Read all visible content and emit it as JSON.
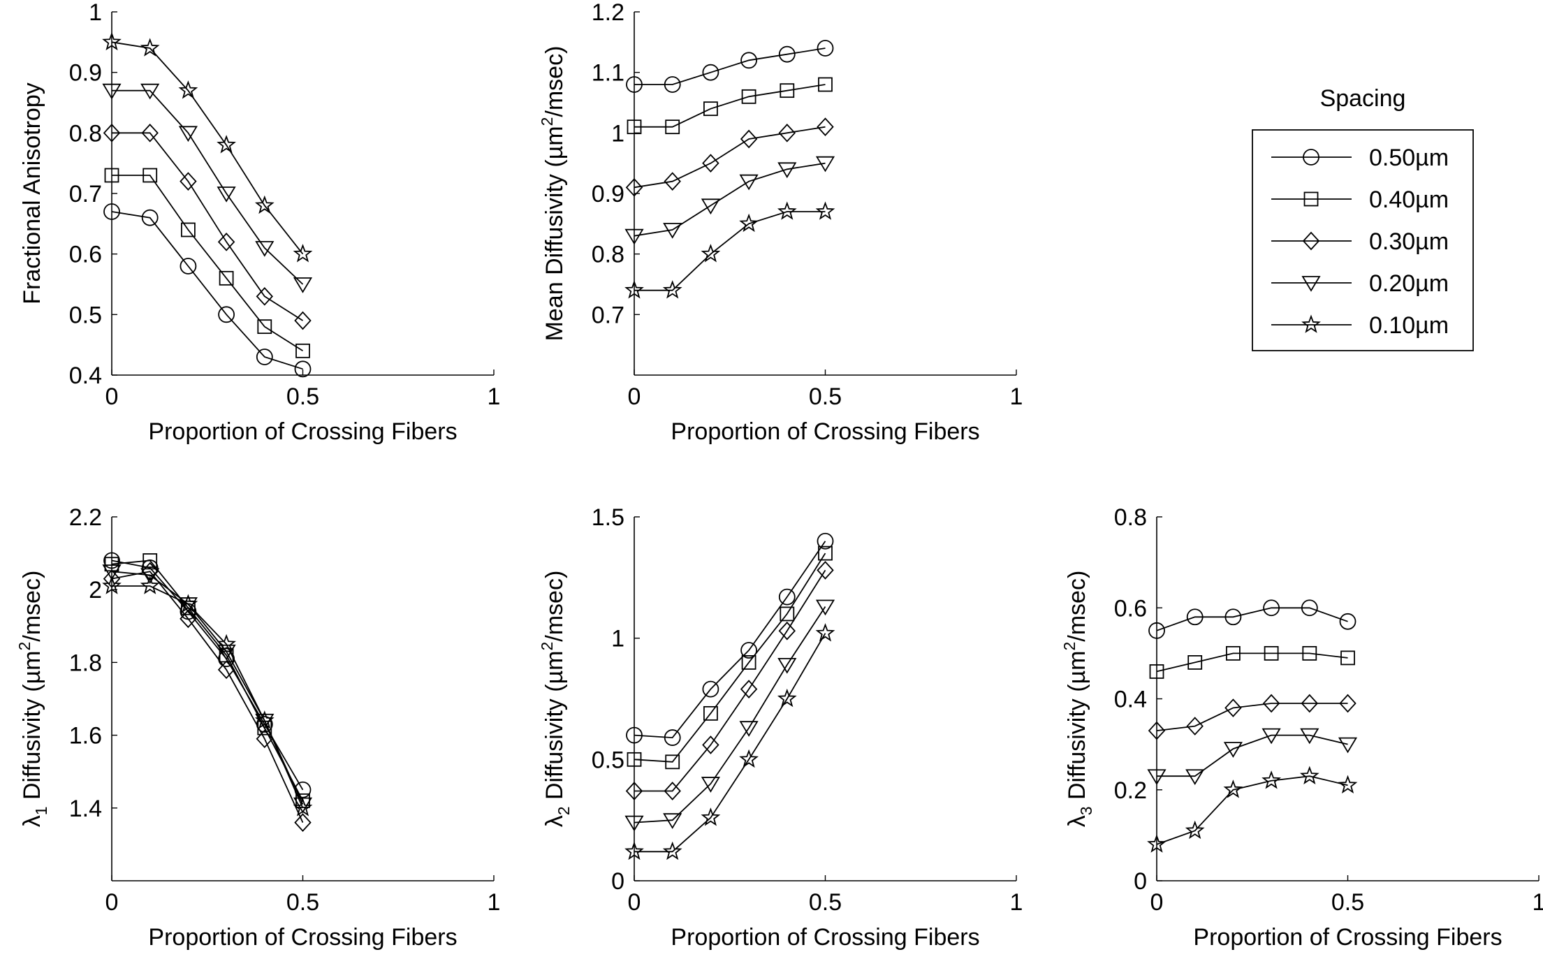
{
  "legend": {
    "title": "Spacing",
    "entries": [
      {
        "label": "0.50µm",
        "marker": "circle"
      },
      {
        "label": "0.40µm",
        "marker": "square"
      },
      {
        "label": "0.30µm",
        "marker": "diamond"
      },
      {
        "label": "0.20µm",
        "marker": "triangle-down"
      },
      {
        "label": "0.10µm",
        "marker": "star"
      }
    ]
  },
  "chart_data": [
    {
      "type": "line",
      "xlabel": "Proportion of Crossing Fibers",
      "ylabel": "Fractional Anisotropy",
      "xlim": [
        0,
        1
      ],
      "ylim": [
        0.4,
        1
      ],
      "xticks": [
        "0",
        "0.5",
        "1"
      ],
      "yticks": [
        "0.4",
        "0.5",
        "0.6",
        "0.7",
        "0.8",
        "0.9",
        "1"
      ],
      "x": [
        0,
        0.1,
        0.2,
        0.3,
        0.4,
        0.5
      ],
      "series": [
        {
          "name": "0.50µm",
          "marker": "circle",
          "values": [
            0.67,
            0.66,
            0.58,
            0.5,
            0.43,
            0.41
          ]
        },
        {
          "name": "0.40µm",
          "marker": "square",
          "values": [
            0.73,
            0.73,
            0.64,
            0.56,
            0.48,
            0.44
          ]
        },
        {
          "name": "0.30µm",
          "marker": "diamond",
          "values": [
            0.8,
            0.8,
            0.72,
            0.62,
            0.53,
            0.49
          ]
        },
        {
          "name": "0.20µm",
          "marker": "triangle-down",
          "values": [
            0.87,
            0.87,
            0.8,
            0.7,
            0.61,
            0.55
          ]
        },
        {
          "name": "0.10µm",
          "marker": "star",
          "values": [
            0.95,
            0.94,
            0.87,
            0.78,
            0.68,
            0.6
          ]
        }
      ]
    },
    {
      "type": "line",
      "xlabel": "Proportion of Crossing Fibers",
      "ylabel": "Mean Diffusivity (µm²/msec)",
      "xlim": [
        0,
        1
      ],
      "ylim": [
        0.6,
        1.2
      ],
      "xticks": [
        "0",
        "0.5",
        "1"
      ],
      "yticks": [
        "0.7",
        "0.8",
        "0.9",
        "1",
        "1.1",
        "1.2"
      ],
      "x": [
        0,
        0.1,
        0.2,
        0.3,
        0.4,
        0.5
      ],
      "series": [
        {
          "name": "0.50µm",
          "marker": "circle",
          "values": [
            1.08,
            1.08,
            1.1,
            1.12,
            1.13,
            1.14
          ]
        },
        {
          "name": "0.40µm",
          "marker": "square",
          "values": [
            1.01,
            1.01,
            1.04,
            1.06,
            1.07,
            1.08
          ]
        },
        {
          "name": "0.30µm",
          "marker": "diamond",
          "values": [
            0.91,
            0.92,
            0.95,
            0.99,
            1.0,
            1.01
          ]
        },
        {
          "name": "0.20µm",
          "marker": "triangle-down",
          "values": [
            0.83,
            0.84,
            0.88,
            0.92,
            0.94,
            0.95
          ]
        },
        {
          "name": "0.10µm",
          "marker": "star",
          "values": [
            0.74,
            0.74,
            0.8,
            0.85,
            0.87,
            0.87
          ]
        }
      ]
    },
    {
      "type": "line",
      "xlabel": "Proportion of Crossing Fibers",
      "ylabel": "λ₁ Diffusivity (µm²/msec)",
      "xlim": [
        0,
        1
      ],
      "ylim": [
        1.2,
        2.2
      ],
      "xticks": [
        "0",
        "0.5",
        "1"
      ],
      "yticks": [
        "1.4",
        "1.6",
        "1.8",
        "2",
        "2.2"
      ],
      "x": [
        0,
        0.1,
        0.2,
        0.3,
        0.4,
        0.5
      ],
      "series": [
        {
          "name": "0.50µm",
          "marker": "circle",
          "values": [
            2.08,
            2.06,
            1.94,
            1.81,
            1.63,
            1.45
          ]
        },
        {
          "name": "0.40µm",
          "marker": "square",
          "values": [
            2.07,
            2.08,
            1.95,
            1.82,
            1.62,
            1.42
          ]
        },
        {
          "name": "0.30µm",
          "marker": "diamond",
          "values": [
            2.03,
            2.05,
            1.92,
            1.78,
            1.59,
            1.36
          ]
        },
        {
          "name": "0.20µm",
          "marker": "triangle-down",
          "values": [
            2.05,
            2.04,
            1.96,
            1.83,
            1.64,
            1.41
          ]
        },
        {
          "name": "0.10µm",
          "marker": "star",
          "values": [
            2.01,
            2.01,
            1.96,
            1.85,
            1.64,
            1.4
          ]
        }
      ]
    },
    {
      "type": "line",
      "xlabel": "Proportion of Crossing Fibers",
      "ylabel": "λ₂ Diffusivity (µm²/msec)",
      "xlim": [
        0,
        1
      ],
      "ylim": [
        0,
        1.5
      ],
      "xticks": [
        "0",
        "0.5",
        "1"
      ],
      "yticks": [
        "0",
        "0.5",
        "1",
        "1.5"
      ],
      "x": [
        0,
        0.1,
        0.2,
        0.3,
        0.4,
        0.5
      ],
      "series": [
        {
          "name": "0.50µm",
          "marker": "circle",
          "values": [
            0.6,
            0.59,
            0.79,
            0.95,
            1.17,
            1.4
          ]
        },
        {
          "name": "0.40µm",
          "marker": "square",
          "values": [
            0.5,
            0.49,
            0.69,
            0.9,
            1.1,
            1.35
          ]
        },
        {
          "name": "0.30µm",
          "marker": "diamond",
          "values": [
            0.37,
            0.37,
            0.56,
            0.79,
            1.03,
            1.28
          ]
        },
        {
          "name": "0.20µm",
          "marker": "triangle-down",
          "values": [
            0.24,
            0.25,
            0.4,
            0.63,
            0.89,
            1.13
          ]
        },
        {
          "name": "0.10µm",
          "marker": "star",
          "values": [
            0.12,
            0.12,
            0.26,
            0.5,
            0.75,
            1.02
          ]
        }
      ]
    },
    {
      "type": "line",
      "xlabel": "Proportion of Crossing Fibers",
      "ylabel": "λ₃ Diffusivity (µm²/msec)",
      "xlim": [
        0,
        1
      ],
      "ylim": [
        0,
        0.8
      ],
      "xticks": [
        "0",
        "0.5",
        "1"
      ],
      "yticks": [
        "0",
        "0.2",
        "0.4",
        "0.6",
        "0.8"
      ],
      "x": [
        0,
        0.1,
        0.2,
        0.3,
        0.4,
        0.5
      ],
      "series": [
        {
          "name": "0.50µm",
          "marker": "circle",
          "values": [
            0.55,
            0.58,
            0.58,
            0.6,
            0.6,
            0.57
          ]
        },
        {
          "name": "0.40µm",
          "marker": "square",
          "values": [
            0.46,
            0.48,
            0.5,
            0.5,
            0.5,
            0.49
          ]
        },
        {
          "name": "0.30µm",
          "marker": "diamond",
          "values": [
            0.33,
            0.34,
            0.38,
            0.39,
            0.39,
            0.39
          ]
        },
        {
          "name": "0.20µm",
          "marker": "triangle-down",
          "values": [
            0.23,
            0.23,
            0.29,
            0.32,
            0.32,
            0.3
          ]
        },
        {
          "name": "0.10µm",
          "marker": "star",
          "values": [
            0.08,
            0.11,
            0.2,
            0.22,
            0.23,
            0.21
          ]
        }
      ]
    }
  ]
}
